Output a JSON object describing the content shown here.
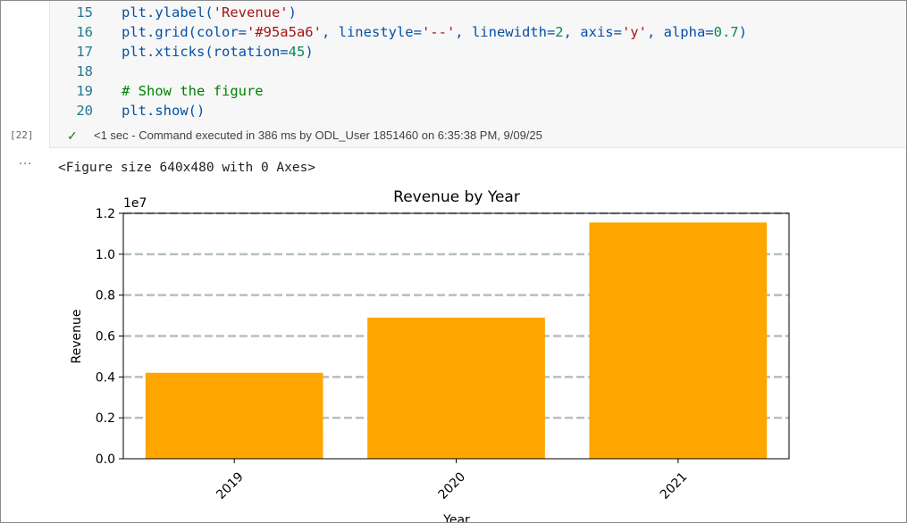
{
  "code_cell": {
    "lines": [
      {
        "num": "15",
        "html": "plt.ylabel(<span class=\"str\">'Revenue'</span>)"
      },
      {
        "num": "16",
        "html": "plt.grid(color=<span class=\"str\">'#95a5a6'</span>, linestyle=<span class=\"str\">'--'</span>, linewidth=<span class=\"num\">2</span>, axis=<span class=\"str\">'y'</span>, alpha=<span class=\"num\">0.7</span>)"
      },
      {
        "num": "17",
        "html": "plt.xticks(rotation=<span class=\"num\">45</span>)"
      },
      {
        "num": "18",
        "html": ""
      },
      {
        "num": "19",
        "html": "<span class=\"cm\"># Show the figure</span>"
      },
      {
        "num": "20",
        "html": "plt.show()"
      }
    ],
    "execution_count": "[22]",
    "status_text": "<1 sec - Command executed in 386 ms by ODL_User 1851460 on 6:35:38 PM, 9/09/25"
  },
  "output": {
    "more_label": "···",
    "figure_text": "<Figure size 640x480 with 0 Axes>"
  },
  "chart_data": {
    "type": "bar",
    "title": "Revenue by Year",
    "xlabel": "Year",
    "ylabel": "Revenue",
    "scale_label": "1e7",
    "categories": [
      "2019",
      "2020",
      "2021"
    ],
    "values": [
      4200000,
      6900000,
      11550000
    ],
    "ylim": [
      0,
      12000000
    ],
    "yticks": [
      0,
      2000000,
      4000000,
      6000000,
      8000000,
      10000000,
      12000000
    ],
    "ytick_labels": [
      "0.0",
      "0.2",
      "0.4",
      "0.6",
      "0.8",
      "1.0",
      "1.2"
    ],
    "bar_color": "#ffa500",
    "grid_color": "#95a5a6",
    "grid": "y, dashed",
    "xtick_rotation": 45
  }
}
